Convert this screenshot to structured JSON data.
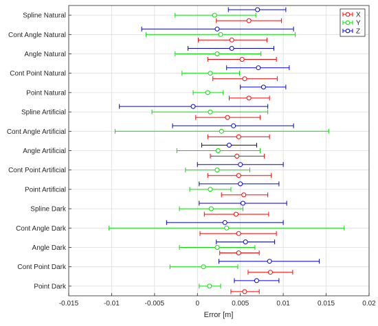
{
  "chart_data": {
    "type": "scatter",
    "subtype": "horizontal-errorbar",
    "title": "",
    "xlabel": "Error [m]",
    "ylabel": "",
    "xlim": [
      -0.015,
      0.02
    ],
    "xticks": [
      -0.015,
      -0.01,
      -0.005,
      0,
      0.005,
      0.01,
      0.015,
      0.02
    ],
    "xtick_labels": [
      "-0.015",
      "-0.01",
      "-0.005",
      "0",
      "0.005",
      "0.01",
      "0.015",
      "0.02"
    ],
    "grid": true,
    "legend_position": "top-right",
    "categories": [
      "Spline  Natural",
      "Cont Angle  Natural",
      "Angle  Natural",
      "Cont Point  Natural",
      "Point Natural",
      "Spline Artificial",
      "Cont Angle Artificial",
      "Angle Artificial",
      "Cont Point Artificial",
      "Point Artificial",
      "Spline Dark",
      "Cont Angle Dark",
      "Angle Dark",
      "Cont Point Dark",
      "Point Dark"
    ],
    "series": [
      {
        "name": "X",
        "color": "#ff0000",
        "values": [
          0.006,
          0.004,
          0.0052,
          0.0055,
          0.006,
          0.0035,
          0.0048,
          0.0046,
          0.0048,
          0.0054,
          0.0045,
          0.0048,
          0.0048,
          0.0085,
          0.0055
        ],
        "low": [
          0.0022,
          0.0001,
          0.0012,
          0.0018,
          0.0037,
          -0.0002,
          0.0012,
          0.0015,
          0.0012,
          0.0028,
          0.0008,
          0.0003,
          0.0026,
          0.0059,
          0.0039
        ],
        "high": [
          0.0098,
          0.0081,
          0.0092,
          0.0093,
          0.0084,
          0.0073,
          0.0084,
          0.0078,
          0.0086,
          0.0082,
          0.0083,
          0.0092,
          0.0072,
          0.0111,
          0.0072
        ]
      },
      {
        "name": "Y",
        "color": "#00e000",
        "values": [
          0.002,
          0.0027,
          0.0023,
          0.0015,
          0.0012,
          0.0015,
          0.0028,
          0.0024,
          0.0023,
          0.0015,
          0.0016,
          0.0034,
          0.0023,
          0.0007,
          0.0014
        ],
        "low": [
          -0.0026,
          -0.006,
          -0.0026,
          -0.0018,
          -0.0005,
          -0.0053,
          -0.0096,
          -0.0024,
          -0.0014,
          -0.0009,
          -0.0021,
          -0.0103,
          -0.0021,
          -0.0032,
          0.0002
        ],
        "high": [
          0.0068,
          0.0114,
          0.0074,
          0.0049,
          0.003,
          0.0082,
          0.0153,
          0.0073,
          0.0061,
          0.0039,
          0.0053,
          0.0171,
          0.0067,
          0.0047,
          0.0027
        ]
      },
      {
        "name": "Z",
        "color": "#0000dd",
        "values": [
          0.007,
          0.0023,
          0.004,
          0.0071,
          0.0077,
          -0.0005,
          0.0042,
          0.0037,
          0.005,
          0.005,
          0.0053,
          0.0032,
          0.0056,
          0.0084,
          0.0069
        ],
        "low": [
          0.0036,
          -0.0065,
          -0.0011,
          0.0034,
          0.005,
          -0.0091,
          -0.0029,
          0.0005,
          0.0,
          0.0002,
          0.0002,
          -0.0036,
          0.0022,
          0.0025,
          0.0043
        ],
        "high": [
          0.0103,
          0.0112,
          0.0089,
          0.0107,
          0.0103,
          0.0082,
          0.0112,
          0.0069,
          0.01,
          0.0095,
          0.0104,
          0.01,
          0.009,
          0.0142,
          0.0095
        ]
      }
    ]
  }
}
